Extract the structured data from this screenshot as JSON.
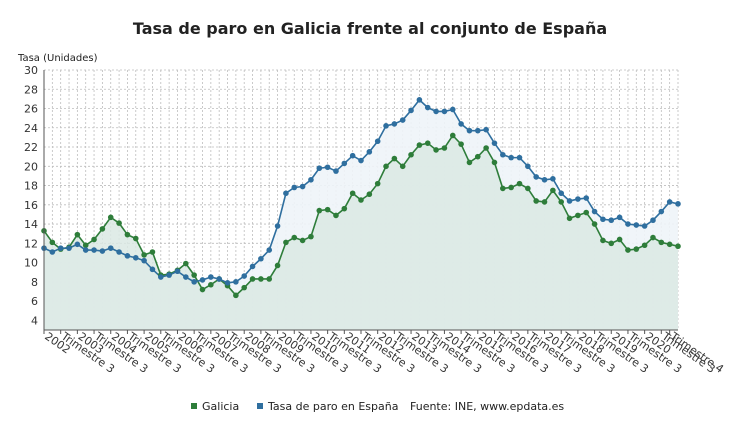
{
  "chart_data": {
    "type": "line",
    "title": "Tasa de paro en Galicia frente al conjunto de España",
    "ylabel": "Tasa (Unidades)",
    "xlabel": "",
    "ylim": [
      3,
      30
    ],
    "yticks": [
      4,
      6,
      8,
      10,
      12,
      14,
      16,
      18,
      20,
      22,
      24,
      26,
      28,
      30
    ],
    "grid": true,
    "legend_position": "bottom",
    "x_tick_labels": [
      "2002",
      "Trimestre 3",
      "2003",
      "Trimestre 3",
      "2004",
      "Trimestre 3",
      "2005",
      "Trimestre 3",
      "2006",
      "Trimestre 3",
      "2007",
      "Trimestre 3",
      "2008",
      "Trimestre 3",
      "2009",
      "Trimestre 3",
      "2010",
      "Trimestre 3",
      "2011",
      "Trimestre 3",
      "2012",
      "Trimestre 3",
      "2013",
      "Trimestre 3",
      "2014",
      "Trimestre 3",
      "2015",
      "Trimestre 3",
      "2016",
      "Trimestre 3",
      "2017",
      "Trimestre 3",
      "2018",
      "Trimestre 3",
      "2019",
      "Trimestre 3",
      "2020",
      "Trimestre 3",
      "Trimestre 4"
    ],
    "x_tick_positions": [
      0,
      2,
      4,
      6,
      8,
      10,
      12,
      14,
      16,
      18,
      20,
      22,
      24,
      26,
      28,
      30,
      32,
      34,
      36,
      38,
      40,
      42,
      44,
      46,
      48,
      50,
      52,
      54,
      56,
      58,
      60,
      62,
      64,
      66,
      68,
      70,
      72,
      74,
      75
    ],
    "series": [
      {
        "name": "Galicia",
        "color": "#2e7d3a",
        "values": [
          13.3,
          12.1,
          11.4,
          11.6,
          12.9,
          11.8,
          12.4,
          13.5,
          14.7,
          14.1,
          12.9,
          12.5,
          10.8,
          11.1,
          8.7,
          8.8,
          9.2,
          9.9,
          8.7,
          7.2,
          7.7,
          8.3,
          7.6,
          6.6,
          7.4,
          8.3,
          8.3,
          8.3,
          9.7,
          12.1,
          12.6,
          12.3,
          12.7,
          15.4,
          15.5,
          14.9,
          15.6,
          17.2,
          16.5,
          17.1,
          18.2,
          20.0,
          20.8,
          20.0,
          21.2,
          22.2,
          22.4,
          21.7,
          21.9,
          23.2,
          22.3,
          20.4,
          21.0,
          21.9,
          20.4,
          17.7,
          17.8,
          18.2,
          17.7,
          16.4,
          16.3,
          17.5,
          16.3,
          14.6,
          14.9,
          15.2,
          14.0,
          12.3,
          12.0,
          12.4,
          11.3,
          11.4,
          11.8,
          12.6,
          12.1,
          11.9,
          11.7
        ]
      },
      {
        "name": "Tasa de paro en España",
        "color": "#2f6f9f",
        "values": [
          11.5,
          11.1,
          11.5,
          11.5,
          11.9,
          11.3,
          11.3,
          11.2,
          11.5,
          11.1,
          10.7,
          10.5,
          10.2,
          9.3,
          8.5,
          8.7,
          9.1,
          8.5,
          8.0,
          8.2,
          8.5,
          8.3,
          7.9,
          8.0,
          8.6,
          9.6,
          10.4,
          11.3,
          13.8,
          17.2,
          17.8,
          17.9,
          18.6,
          19.8,
          19.9,
          19.5,
          20.3,
          21.1,
          20.6,
          21.5,
          22.6,
          24.2,
          24.4,
          24.8,
          25.8,
          26.9,
          26.1,
          25.7,
          25.7,
          25.9,
          24.4,
          23.7,
          23.7,
          23.8,
          22.4,
          21.2,
          20.9,
          20.9,
          20.0,
          18.9,
          18.6,
          18.7,
          17.2,
          16.4,
          16.6,
          16.7,
          15.3,
          14.5,
          14.4,
          14.7,
          14.0,
          13.9,
          13.8,
          14.4,
          15.3,
          16.3,
          16.1
        ]
      }
    ],
    "source_text": "Fuente: INE, www.epdata.es"
  }
}
